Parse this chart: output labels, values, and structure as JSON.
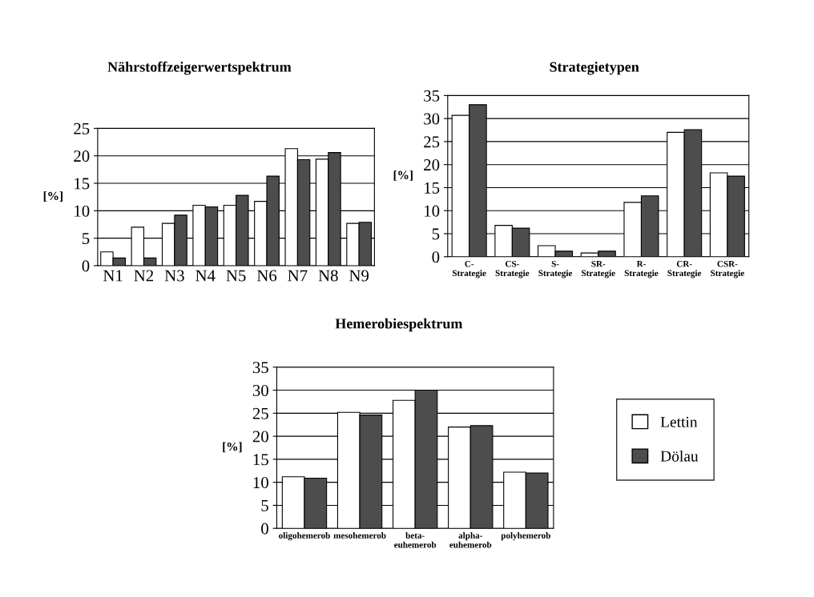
{
  "chart_data": [
    {
      "type": "bar",
      "title": "Nährstoffzeigerwertspektrum",
      "ylabel": "[%]",
      "categories": [
        "N1",
        "N2",
        "N3",
        "N4",
        "N5",
        "N6",
        "N7",
        "N8",
        "N9"
      ],
      "series": [
        {
          "color": "#ffffff",
          "values": [
            2.5,
            7,
            7.7,
            11,
            11,
            11.7,
            21.3,
            19.4,
            7.7
          ]
        },
        {
          "color": "#4d4d4d",
          "values": [
            1.4,
            1.4,
            9.2,
            10.7,
            12.8,
            16.3,
            19.3,
            20.6,
            7.9
          ]
        }
      ],
      "ylim": [
        0,
        25
      ],
      "yticks": [
        0,
        5,
        10,
        15,
        20,
        25
      ],
      "grid": "y",
      "legend": false
    },
    {
      "type": "bar",
      "title": "Strategietypen",
      "ylabel": "[%]",
      "categories": [
        "C-\nStrategie",
        "CS-\nStrategie",
        "S-\nStrategie",
        "SR-\nStrategie",
        "R-\nStrategie",
        "CR-\nStrategie",
        "CSR-\nStrategie"
      ],
      "series": [
        {
          "color": "#ffffff",
          "values": [
            30.7,
            6.8,
            2.4,
            0.8,
            11.8,
            27,
            18.2
          ]
        },
        {
          "color": "#4d4d4d",
          "values": [
            33,
            6.2,
            1.2,
            1.2,
            13.2,
            27.6,
            17.5
          ]
        }
      ],
      "ylim": [
        0,
        35
      ],
      "yticks": [
        0,
        5,
        10,
        15,
        20,
        25,
        30,
        35
      ],
      "grid": "y",
      "legend": false
    },
    {
      "type": "bar",
      "title": "Hemerobiespektrum",
      "ylabel": "[%]",
      "categories": [
        "oligohemerob",
        "mesohemerob",
        "beta-\neuhemerob",
        "alpha-\neuhemerob",
        "polyhemerob"
      ],
      "series": [
        {
          "name": "Lettin",
          "color": "#ffffff",
          "values": [
            11.2,
            25.2,
            27.8,
            22,
            12.2
          ]
        },
        {
          "name": "Dölau",
          "color": "#4d4d4d",
          "values": [
            10.9,
            24.6,
            30,
            22.3,
            12
          ]
        }
      ],
      "ylim": [
        0,
        35
      ],
      "yticks": [
        0,
        5,
        10,
        15,
        20,
        25,
        30,
        35
      ],
      "grid": "y",
      "legend": "right"
    }
  ]
}
